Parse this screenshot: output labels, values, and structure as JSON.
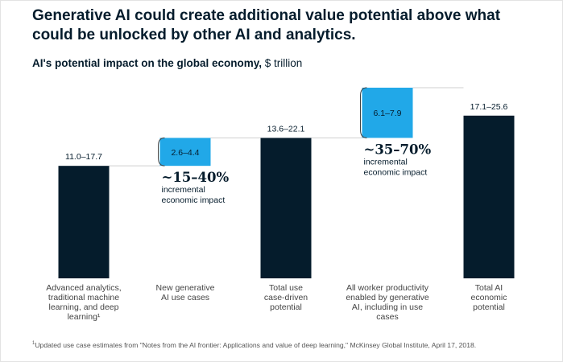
{
  "title": "Generative AI could create additional value potential above what could be unlocked by other AI and analytics.",
  "subtitle": {
    "bold": "AI's potential impact on the global economy,",
    "unit": "$ trillion"
  },
  "colors": {
    "dark": "#051c2c",
    "accent": "#21a8e8",
    "connector": "#cfcfcf"
  },
  "chart_data": {
    "type": "bar",
    "subtype": "waterfall",
    "title": "AI's potential impact on the global economy, $ trillion",
    "ylabel": "$ trillion",
    "ylim": [
      0,
      28
    ],
    "categories": [
      [
        "Advanced analytics,",
        "traditional machine",
        "learning, and deep",
        "learning¹"
      ],
      [
        "New generative",
        "AI use cases"
      ],
      [
        "Total use",
        "case-driven",
        "potential"
      ],
      [
        "All worker productivity",
        "enabled by generative",
        "AI, including in use",
        "cases"
      ],
      [
        "Total AI",
        "economic",
        "potential"
      ]
    ],
    "bars": [
      {
        "kind": "total",
        "low": 11.0,
        "high": 17.7,
        "label": "11.0–17.7"
      },
      {
        "kind": "increment",
        "low": 2.6,
        "high": 4.4,
        "label": "2.6–4.4"
      },
      {
        "kind": "total",
        "low": 13.6,
        "high": 22.1,
        "label": "13.6–22.1"
      },
      {
        "kind": "increment",
        "low": 6.1,
        "high": 7.9,
        "label": "6.1–7.9"
      },
      {
        "kind": "total",
        "low": 17.1,
        "high": 25.6,
        "label": "17.1–25.6"
      }
    ],
    "annotations": [
      {
        "percent": "~15–40%",
        "text": [
          "incremental",
          "economic impact"
        ]
      },
      {
        "percent": "~35–70%",
        "text": [
          "incremental",
          "economic impact"
        ]
      }
    ]
  },
  "footnote": {
    "mark": "1",
    "text": "Updated use case estimates from \"Notes from the AI frontier: Applications and value of deep learning,\" McKinsey Global Institute, April 17, 2018."
  }
}
